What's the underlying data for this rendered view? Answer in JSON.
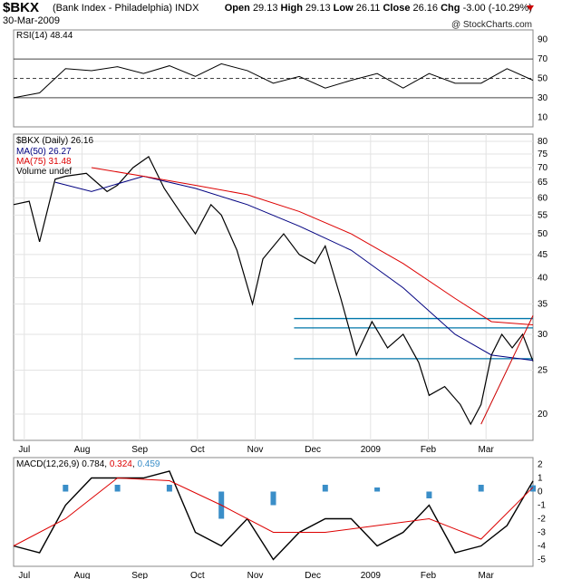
{
  "header": {
    "symbol": "$BKX",
    "name": "(Bank Index - Philadelphia)",
    "exchange": "INDX",
    "date": "30-Mar-2009",
    "open_label": "Open",
    "open": "29.13",
    "high_label": "High",
    "high": "29.13",
    "low_label": "Low",
    "low": "26.11",
    "close_label": "Close",
    "close": "26.16",
    "chg_label": "Chg",
    "chg": "-3.00 (-10.29%)",
    "watermark": "@ StockCharts.com"
  },
  "colors": {
    "price_up": "#000000",
    "price_down": "#cc0000",
    "ma50": "#000080",
    "ma75": "#dd0000",
    "support_lines": "#0077aa",
    "macd_hist": "#3a8ec8",
    "rsi_line": "#000000"
  },
  "legend": {
    "rsi": "RSI(14) 48.44",
    "price": "$BKX (Daily) 26.16",
    "ma50": "MA(50) 26.27",
    "ma75": "MA(75) 31.48",
    "volume": "Volume undef",
    "macd_prefix": "MACD(12,26,9) 0.784,",
    "macd_signal_val": "0.324",
    "macd_hist_val": "0.459"
  },
  "chart_data": [
    {
      "type": "line",
      "title": "RSI(14) 48.44",
      "yticks": [
        10,
        30,
        50,
        70,
        90
      ],
      "ylim": [
        0,
        100
      ],
      "reference_lines": [
        30,
        50,
        70
      ],
      "x_fraction": [
        0.0,
        0.05,
        0.1,
        0.15,
        0.2,
        0.25,
        0.3,
        0.35,
        0.4,
        0.45,
        0.5,
        0.55,
        0.6,
        0.65,
        0.7,
        0.75,
        0.8,
        0.85,
        0.9,
        0.95,
        1.0
      ],
      "values": [
        30,
        35,
        60,
        58,
        62,
        55,
        63,
        52,
        65,
        58,
        45,
        52,
        40,
        48,
        55,
        40,
        55,
        45,
        45,
        60,
        48
      ]
    },
    {
      "type": "line",
      "title": "$BKX (Daily) 26.16",
      "xticks": [
        "Jul",
        "Aug",
        "Sep",
        "Oct",
        "Nov",
        "Dec",
        "2009",
        "Feb",
        "Mar"
      ],
      "yticks": [
        20,
        25,
        30,
        35,
        40,
        45,
        50,
        55,
        60,
        65,
        70,
        75,
        80
      ],
      "y_scale": "log",
      "ylim": [
        17.5,
        83
      ],
      "series": [
        {
          "name": "$BKX (Daily) 26.16",
          "x_fraction": [
            0.0,
            0.03,
            0.05,
            0.08,
            0.1,
            0.14,
            0.18,
            0.2,
            0.23,
            0.26,
            0.29,
            0.32,
            0.35,
            0.38,
            0.4,
            0.43,
            0.46,
            0.48,
            0.52,
            0.55,
            0.58,
            0.6,
            0.63,
            0.66,
            0.69,
            0.72,
            0.75,
            0.78,
            0.8,
            0.83,
            0.86,
            0.88,
            0.9,
            0.92,
            0.94,
            0.96,
            0.98,
            1.0
          ],
          "values": [
            58,
            59,
            48,
            66,
            67,
            68,
            62,
            64,
            70,
            74,
            63,
            56,
            50,
            58,
            55,
            46,
            35,
            44,
            50,
            45,
            43,
            47,
            36,
            27,
            32,
            28,
            30,
            26,
            22,
            23,
            21,
            19,
            21,
            27,
            30,
            28,
            30,
            26.16
          ]
        },
        {
          "name": "MA(50) 26.27",
          "x_fraction": [
            0.08,
            0.15,
            0.25,
            0.35,
            0.45,
            0.55,
            0.65,
            0.75,
            0.85,
            0.92,
            1.0
          ],
          "values": [
            65,
            62,
            67,
            63,
            58,
            52,
            46,
            38,
            30,
            27,
            26.27
          ]
        },
        {
          "name": "MA(75) 31.48",
          "x_fraction": [
            0.15,
            0.25,
            0.35,
            0.45,
            0.55,
            0.65,
            0.75,
            0.85,
            0.92,
            1.0
          ],
          "values": [
            70,
            67,
            64,
            61,
            56,
            50,
            43,
            36,
            32,
            31.48
          ]
        }
      ],
      "horizontal_lines": [
        32.5,
        31.0,
        26.5
      ],
      "annotations": [
        "blue horizontal support/resistance lines",
        "red trend line from March low"
      ]
    },
    {
      "type": "bar",
      "title": "MACD(12,26,9) 0.784, 0.324, 0.459",
      "xticks": [
        "Jul",
        "Aug",
        "Sep",
        "Oct",
        "Nov",
        "Dec",
        "2009",
        "Feb",
        "Mar"
      ],
      "yticks": [
        -5,
        -4,
        -3,
        -2,
        -1,
        0,
        1,
        2
      ],
      "ylim": [
        -5.5,
        2.5
      ],
      "series": [
        {
          "name": "MACD",
          "x_fraction": [
            0.0,
            0.05,
            0.1,
            0.15,
            0.2,
            0.25,
            0.3,
            0.35,
            0.4,
            0.45,
            0.5,
            0.55,
            0.6,
            0.65,
            0.7,
            0.75,
            0.8,
            0.85,
            0.9,
            0.95,
            1.0
          ],
          "values": [
            -4,
            -4.5,
            -1,
            1,
            1,
            1,
            1.5,
            -3,
            -4,
            -2,
            -5,
            -3,
            -2,
            -2,
            -4,
            -3,
            -1,
            -4.5,
            -4,
            -2.5,
            0.78
          ]
        },
        {
          "name": "Signal",
          "x_fraction": [
            0.0,
            0.1,
            0.2,
            0.3,
            0.4,
            0.5,
            0.6,
            0.7,
            0.8,
            0.9,
            1.0
          ],
          "values": [
            -4,
            -2,
            1,
            0.8,
            -1,
            -3,
            -3,
            -2.5,
            -2,
            -3.5,
            0.32
          ]
        },
        {
          "name": "Histogram",
          "x_fraction": [
            0.0,
            0.1,
            0.2,
            0.3,
            0.4,
            0.5,
            0.6,
            0.7,
            0.8,
            0.9,
            1.0
          ],
          "values": [
            0,
            0.5,
            0.5,
            0.5,
            -2,
            -1,
            0.5,
            0.3,
            -0.5,
            0.5,
            0.46
          ]
        }
      ]
    }
  ]
}
